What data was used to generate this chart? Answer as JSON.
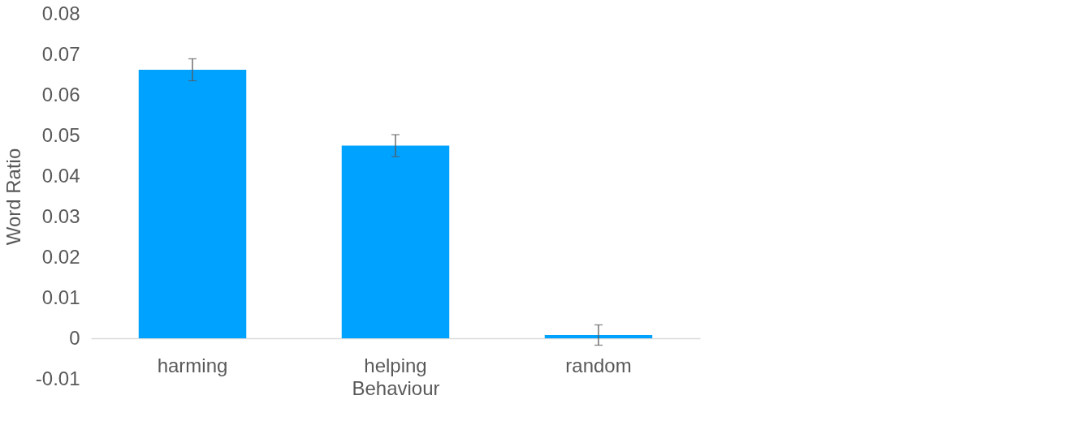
{
  "chart_data": {
    "type": "bar",
    "xlabel": "Behaviour",
    "ylabel": "Word Ratio",
    "categories": [
      "harming",
      "helping",
      "random"
    ],
    "values": [
      0.0662,
      0.0475,
      0.0008
    ],
    "errors": [
      0.0027,
      0.0027,
      0.0025
    ],
    "color": "#00a2ff",
    "ylim": [
      -0.01,
      0.08
    ],
    "yticks": [
      -0.01,
      0,
      0.01,
      0.02,
      0.03,
      0.04,
      0.05,
      0.06,
      0.07,
      0.08
    ],
    "grid": false,
    "legend": false
  }
}
